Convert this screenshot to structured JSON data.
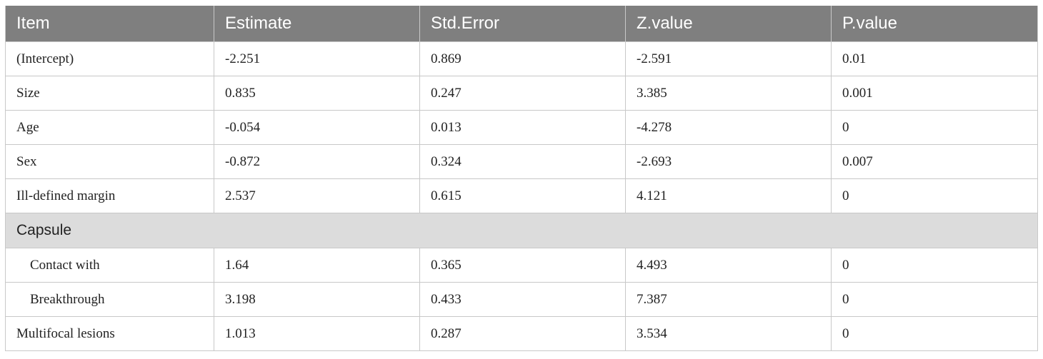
{
  "table": {
    "headers": [
      "Item",
      "Estimate",
      "Std.Error",
      "Z.value",
      "P.value"
    ],
    "rows": [
      {
        "item": "(Intercept)",
        "estimate": "-2.251",
        "std_error": "0.869",
        "z_value": "-2.591",
        "p_value": "0.01"
      },
      {
        "item": "Size",
        "estimate": "0.835",
        "std_error": "0.247",
        "z_value": "3.385",
        "p_value": "0.001"
      },
      {
        "item": "Age",
        "estimate": "-0.054",
        "std_error": "0.013",
        "z_value": "-4.278",
        "p_value": "0"
      },
      {
        "item": "Sex",
        "estimate": "-0.872",
        "std_error": "0.324",
        "z_value": "-2.693",
        "p_value": "0.007"
      },
      {
        "item": "Ill-defined margin",
        "estimate": "2.537",
        "std_error": "0.615",
        "z_value": "4.121",
        "p_value": "0"
      }
    ],
    "group": {
      "label": "Capsule",
      "rows": [
        {
          "item": "Contact with",
          "estimate": "1.64",
          "std_error": "0.365",
          "z_value": "4.493",
          "p_value": "0"
        },
        {
          "item": "Breakthrough",
          "estimate": "3.198",
          "std_error": "0.433",
          "z_value": "7.387",
          "p_value": "0"
        }
      ]
    },
    "tail_rows": [
      {
        "item": "Multifocal lesions",
        "estimate": "1.013",
        "std_error": "0.287",
        "z_value": "3.534",
        "p_value": "0"
      }
    ]
  }
}
